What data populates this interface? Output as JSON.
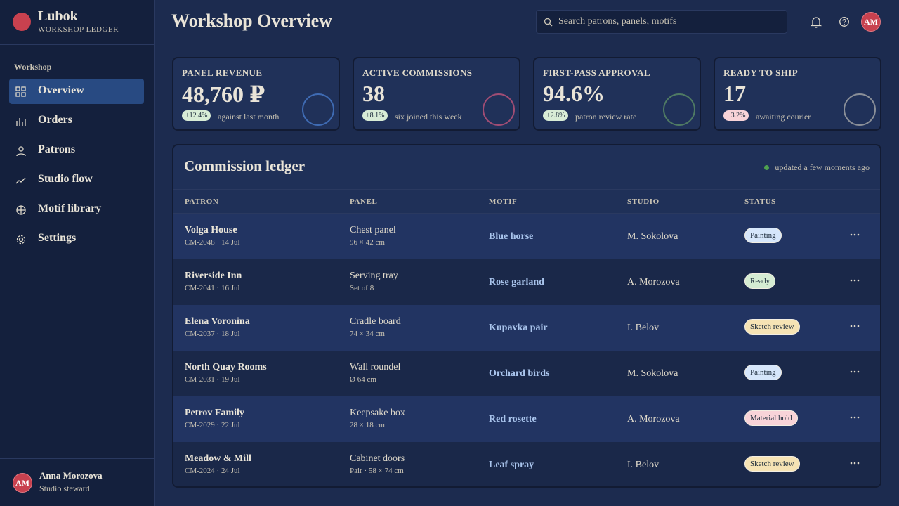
{
  "brand": {
    "name": "Lubok",
    "subtitle": "WORKSHOP LEDGER"
  },
  "nav": {
    "section": "Workshop",
    "items": [
      "Overview",
      "Orders",
      "Patrons",
      "Studio flow",
      "Motif library",
      "Settings"
    ]
  },
  "user": {
    "initials": "AM",
    "name": "Anna Morozova",
    "role": "Studio steward"
  },
  "header": {
    "title": "Workshop Overview",
    "search_placeholder": "Search patrons, panels, motifs",
    "avatar": "AM"
  },
  "kpis": [
    {
      "label": "PANEL REVENUE",
      "value": "48,760 ₽",
      "delta": "+12.4%",
      "note": "against last month",
      "ring_color": "#3f6bb3",
      "delta_bg": "#d8ecd6"
    },
    {
      "label": "ACTIVE COMMISSIONS",
      "value": "38",
      "delta": "+8.1%",
      "note": "six joined this week",
      "ring_color": "#a04d74",
      "delta_bg": "#d8ecd6"
    },
    {
      "label": "FIRST-PASS APPROVAL",
      "value": "94.6%",
      "delta": "+2.8%",
      "note": "patron review rate",
      "ring_color": "#4f7a63",
      "delta_bg": "#d8ecd6"
    },
    {
      "label": "READY TO SHIP",
      "value": "17",
      "delta": "−3.2%",
      "note": "awaiting courier",
      "ring_color": "#8a8f98",
      "delta_bg": "#f8d3d8"
    }
  ],
  "ledger": {
    "title": "Commission ledger",
    "status": "updated a few moments ago",
    "columns": [
      "PATRON",
      "PANEL",
      "MOTIF",
      "STUDIO",
      "STATUS"
    ],
    "rows": [
      {
        "patron": "Volga House",
        "ref": "CM-2048 · 14 Jul",
        "panel": "Chest panel",
        "size": "96 × 42 cm",
        "motif": "Blue horse",
        "studio": "M. Sokolova",
        "status": "Painting",
        "status_color": "#d6e6fb"
      },
      {
        "patron": "Riverside Inn",
        "ref": "CM-2041 · 16 Jul",
        "panel": "Serving tray",
        "size": "Set of 8",
        "motif": "Rose garland",
        "studio": "A. Morozova",
        "status": "Ready",
        "status_color": "#d5ecd3"
      },
      {
        "patron": "Elena Voronina",
        "ref": "CM-2037 · 18 Jul",
        "panel": "Cradle board",
        "size": "74 × 34 cm",
        "motif": "Kupavka pair",
        "studio": "I. Belov",
        "status": "Sketch review",
        "status_color": "#f6e3b4"
      },
      {
        "patron": "North Quay Rooms",
        "ref": "CM-2031 · 19 Jul",
        "panel": "Wall roundel",
        "size": "Ø 64 cm",
        "motif": "Orchard birds",
        "studio": "M. Sokolova",
        "status": "Painting",
        "status_color": "#d6e6fb"
      },
      {
        "patron": "Petrov Family",
        "ref": "CM-2029 · 22 Jul",
        "panel": "Keepsake box",
        "size": "28 × 18 cm",
        "motif": "Red rosette",
        "studio": "A. Morozova",
        "status": "Material hold",
        "status_color": "#f8d3d8"
      },
      {
        "patron": "Meadow & Mill",
        "ref": "CM-2024 · 24 Jul",
        "panel": "Cabinet doors",
        "size": "Pair · 58 × 74 cm",
        "motif": "Leaf spray",
        "studio": "I. Belov",
        "status": "Sketch review",
        "status_color": "#f6e3b4"
      }
    ]
  }
}
